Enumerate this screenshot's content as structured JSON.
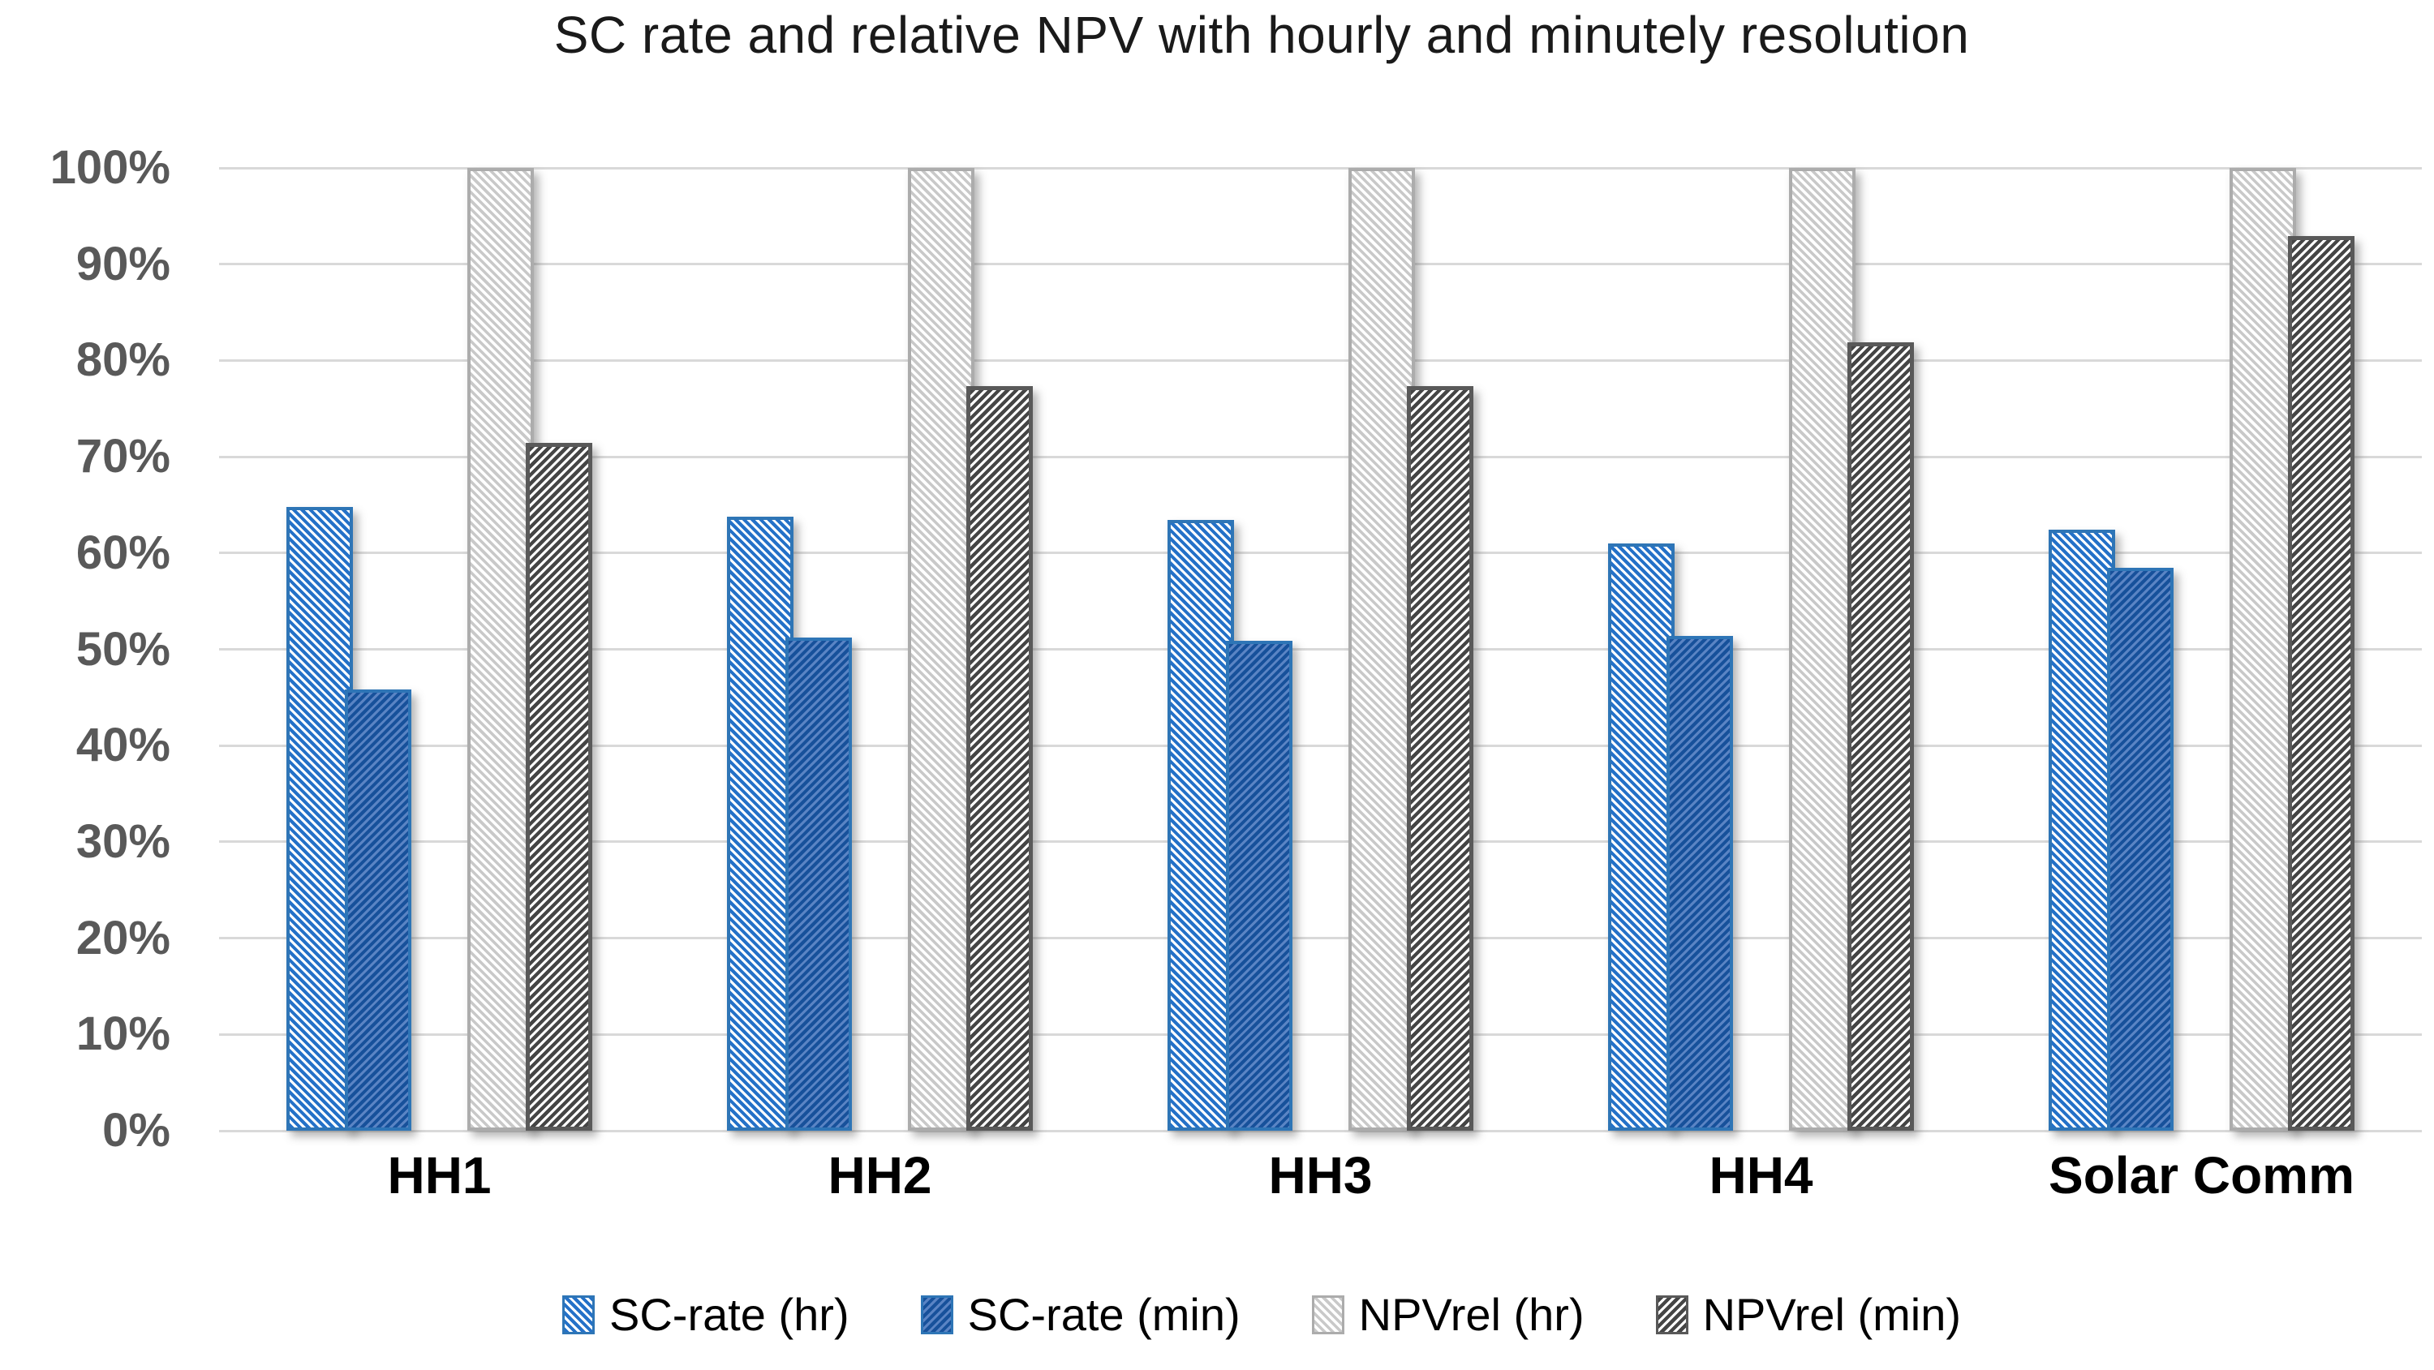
{
  "title": "SC rate and relative NPV with hourly and minutely resolution",
  "chart_data": {
    "type": "bar",
    "title": "SC rate and relative NPV with hourly and minutely resolution",
    "categories": [
      "HH1",
      "HH2",
      "HH3",
      "HH4",
      "Solar Comm"
    ],
    "series": [
      {
        "name": "SC-rate (hr)",
        "values": [
          64.8,
          63.8,
          63.4,
          61.0,
          62.4
        ],
        "pattern": "diagonal-down",
        "stripe_color": "#2471C8",
        "bg_color": "#FFFFFF",
        "border_color": "#2E75B6"
      },
      {
        "name": "SC-rate (min)",
        "values": [
          45.8,
          51.2,
          50.9,
          51.4,
          58.5
        ],
        "pattern": "diagonal-up",
        "stripe_color": "#17519B",
        "bg_color": "#5A84C4",
        "border_color": "#2E75B6"
      },
      {
        "name": "NPVrel (hr)",
        "values": [
          100,
          100,
          100,
          100,
          100
        ],
        "pattern": "diagonal-down",
        "stripe_color": "#C9C9C9",
        "bg_color": "#FFFFFF",
        "border_color": "#ACACAC"
      },
      {
        "name": "NPVrel (min)",
        "values": [
          71.4,
          77.3,
          77.3,
          81.9,
          92.9
        ],
        "pattern": "diagonal-up",
        "stripe_color": "#454545",
        "bg_color": "#FFFFFF",
        "border_color": "#595959"
      }
    ],
    "xlabel": "",
    "ylabel": "",
    "ylim": [
      0,
      100
    ],
    "ytick_step": 10,
    "ytick_labels": [
      "0%",
      "10%",
      "20%",
      "30%",
      "40%",
      "50%",
      "60%",
      "70%",
      "80%",
      "90%",
      "100%"
    ],
    "grid": "horizontal",
    "gridline_color": "#D9D9D9",
    "axis_tick_color": "#595959",
    "category_label_color": "#000000",
    "legend_position": "bottom",
    "legend_labels": [
      "SC-rate (hr)",
      "SC-rate (min)",
      "NPVrel (hr)",
      "NPVrel (min)"
    ]
  }
}
